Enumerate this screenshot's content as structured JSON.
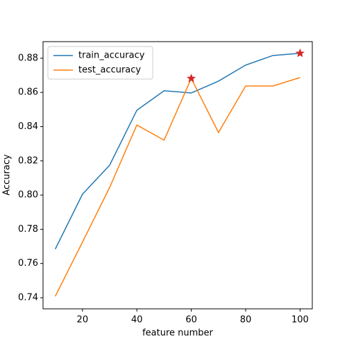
{
  "chart_data": {
    "type": "line",
    "x_label": "feature number",
    "y_label": "Accuracy",
    "x": [
      10,
      20,
      30,
      40,
      50,
      60,
      70,
      80,
      90,
      100
    ],
    "series": [
      {
        "name": "train_accuracy",
        "color": "#1f77b4",
        "values": [
          0.7684,
          0.8005,
          0.8175,
          0.8496,
          0.861,
          0.8597,
          0.8666,
          0.876,
          0.8816,
          0.8829
        ]
      },
      {
        "name": "test_accuracy",
        "color": "#ff7f0e",
        "values": [
          0.7408,
          0.7725,
          0.8045,
          0.841,
          0.8321,
          0.8682,
          0.8366,
          0.8638,
          0.8638,
          0.8687
        ]
      }
    ],
    "highlights": {
      "x": [
        60,
        100
      ],
      "values": [
        0.8682,
        0.8829
      ],
      "color": "#d62728"
    },
    "xlim": [
      5.5,
      104.5
    ],
    "ylim": [
      0.7335,
      0.8897
    ],
    "xticks": [
      20,
      40,
      60,
      80,
      100
    ],
    "yticks": [
      0.74,
      0.76,
      0.78,
      {
        "value": 0.8,
        "label": "0.80"
      },
      0.82,
      0.84,
      0.86,
      0.88
    ],
    "legend": "upper left"
  }
}
